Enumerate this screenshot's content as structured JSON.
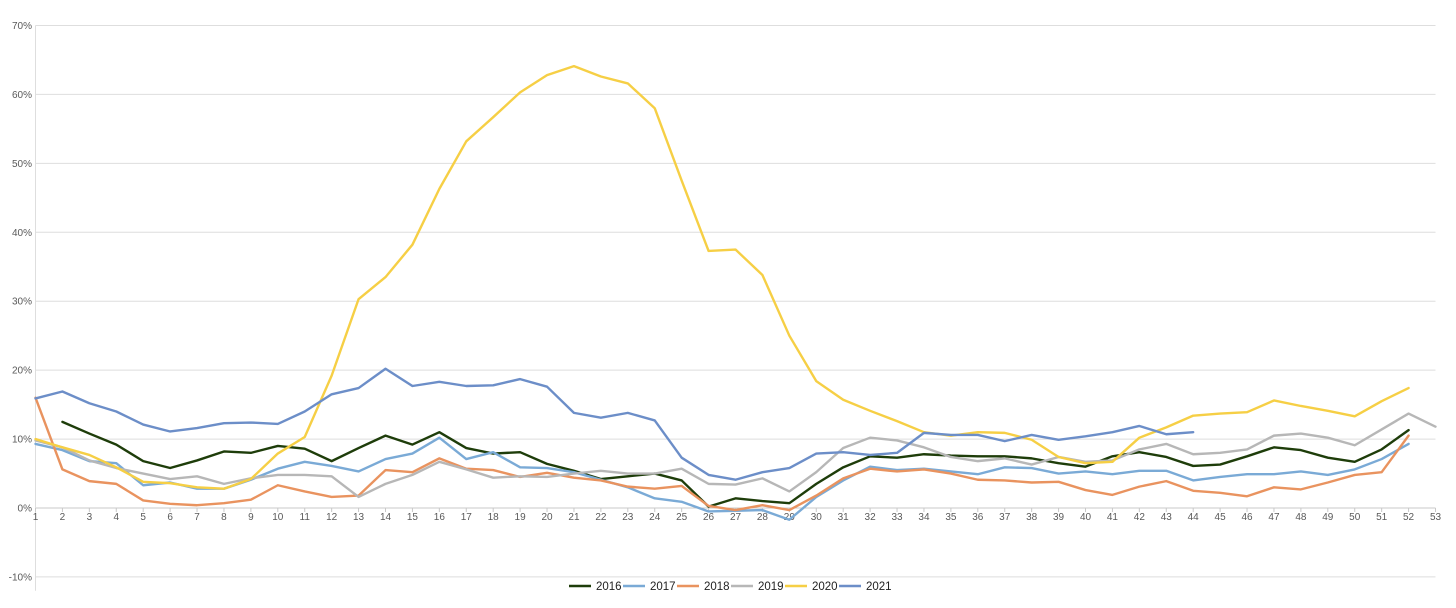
{
  "chart_data": {
    "type": "line",
    "title": "",
    "xlabel": "",
    "ylabel": "",
    "x": [
      1,
      2,
      3,
      4,
      5,
      6,
      7,
      8,
      9,
      10,
      11,
      12,
      13,
      14,
      15,
      16,
      17,
      18,
      19,
      20,
      21,
      22,
      23,
      24,
      25,
      26,
      27,
      28,
      29,
      30,
      31,
      32,
      33,
      34,
      35,
      36,
      37,
      38,
      39,
      40,
      41,
      42,
      43,
      44,
      45,
      46,
      47,
      48,
      49,
      50,
      51,
      52,
      53
    ],
    "xlim": [
      1,
      53
    ],
    "ylim": [
      -0.12,
      0.7
    ],
    "yticks": [
      -0.1,
      0,
      0.1,
      0.2,
      0.3,
      0.4,
      0.5,
      0.6,
      0.7
    ],
    "ytick_labels": [
      "-10%",
      "0%",
      "10%",
      "20%",
      "30%",
      "40%",
      "50%",
      "60%",
      "70%"
    ],
    "grid": true,
    "legend_position": "bottom",
    "series": [
      {
        "name": "2016",
        "color": "#1e3d0a",
        "values": [
          null,
          0.125,
          0.108,
          0.092,
          0.068,
          0.058,
          0.069,
          0.082,
          0.08,
          0.09,
          0.086,
          0.068,
          0.087,
          0.105,
          0.092,
          0.11,
          0.087,
          0.079,
          0.081,
          0.064,
          0.054,
          0.042,
          0.046,
          0.05,
          0.04,
          0.002,
          0.014,
          0.01,
          0.007,
          0.035,
          0.059,
          0.075,
          0.073,
          0.078,
          0.076,
          0.075,
          0.075,
          0.072,
          0.065,
          0.06,
          0.075,
          0.081,
          0.074,
          0.061,
          0.063,
          0.075,
          0.088,
          0.084,
          0.073,
          0.067,
          0.085,
          0.113,
          null
        ]
      },
      {
        "name": "2017",
        "color": "#7aaad6",
        "values": [
          0.093,
          0.084,
          0.068,
          0.065,
          0.033,
          0.037,
          0.028,
          0.028,
          0.041,
          0.057,
          0.067,
          0.061,
          0.053,
          0.071,
          0.079,
          0.102,
          0.071,
          0.081,
          0.059,
          0.058,
          0.052,
          0.041,
          0.03,
          0.014,
          0.009,
          -0.005,
          -0.004,
          -0.003,
          -0.017,
          0.016,
          0.04,
          0.06,
          0.055,
          0.057,
          0.053,
          0.049,
          0.059,
          0.058,
          0.05,
          0.053,
          0.049,
          0.054,
          0.054,
          0.04,
          0.045,
          0.049,
          0.049,
          0.053,
          0.048,
          0.056,
          0.071,
          0.093,
          null
        ]
      },
      {
        "name": "2018",
        "color": "#e9935f",
        "values": [
          0.16,
          0.056,
          0.039,
          0.035,
          0.011,
          0.006,
          0.004,
          0.007,
          0.012,
          0.033,
          0.024,
          0.016,
          0.018,
          0.055,
          0.052,
          0.072,
          0.057,
          0.055,
          0.045,
          0.051,
          0.044,
          0.04,
          0.031,
          0.028,
          0.032,
          0.003,
          -0.003,
          0.004,
          -0.003,
          0.018,
          0.043,
          0.057,
          0.053,
          0.056,
          0.05,
          0.041,
          0.04,
          0.037,
          0.038,
          0.026,
          0.019,
          0.031,
          0.039,
          0.025,
          0.022,
          0.017,
          0.03,
          0.027,
          0.037,
          0.048,
          0.052,
          0.105,
          null
        ]
      },
      {
        "name": "2019",
        "color": "#b7b7b7",
        "values": [
          0.098,
          0.088,
          0.069,
          0.058,
          0.05,
          0.042,
          0.046,
          0.035,
          0.043,
          0.048,
          0.048,
          0.046,
          0.016,
          0.035,
          0.048,
          0.067,
          0.056,
          0.044,
          0.046,
          0.045,
          0.05,
          0.054,
          0.05,
          0.05,
          0.057,
          0.035,
          0.034,
          0.043,
          0.024,
          0.052,
          0.087,
          0.102,
          0.098,
          0.088,
          0.074,
          0.068,
          0.072,
          0.063,
          0.074,
          0.067,
          0.069,
          0.085,
          0.093,
          0.078,
          0.08,
          0.085,
          0.105,
          0.108,
          0.102,
          0.091,
          0.114,
          0.137,
          0.118
        ]
      },
      {
        "name": "2020",
        "color": "#f6cf45",
        "values": [
          0.1,
          0.088,
          0.077,
          0.059,
          0.038,
          0.036,
          0.03,
          0.028,
          0.042,
          0.079,
          0.103,
          0.192,
          0.303,
          0.335,
          0.382,
          0.463,
          0.532,
          0.567,
          0.603,
          0.628,
          0.641,
          0.626,
          0.616,
          0.58,
          0.475,
          0.373,
          0.375,
          0.338,
          0.25,
          0.184,
          0.157,
          0.141,
          0.126,
          0.11,
          0.105,
          0.11,
          0.109,
          0.099,
          0.074,
          0.065,
          0.067,
          0.102,
          0.117,
          0.134,
          0.137,
          0.139,
          0.156,
          0.148,
          0.141,
          0.133,
          0.155,
          0.174,
          null
        ]
      },
      {
        "name": "2021",
        "color": "#6c8ec8",
        "values": [
          0.159,
          0.169,
          0.152,
          0.14,
          0.121,
          0.111,
          0.116,
          0.123,
          0.124,
          0.122,
          0.14,
          0.165,
          0.174,
          0.202,
          0.177,
          0.183,
          0.177,
          0.178,
          0.187,
          0.176,
          0.138,
          0.131,
          0.138,
          0.127,
          0.073,
          0.048,
          0.041,
          0.052,
          0.058,
          0.079,
          0.081,
          0.077,
          0.08,
          0.109,
          0.106,
          0.106,
          0.097,
          0.106,
          0.099,
          0.104,
          0.11,
          0.119,
          0.107,
          0.11,
          null,
          null,
          null,
          null,
          null,
          null,
          null,
          null,
          null
        ]
      }
    ]
  }
}
